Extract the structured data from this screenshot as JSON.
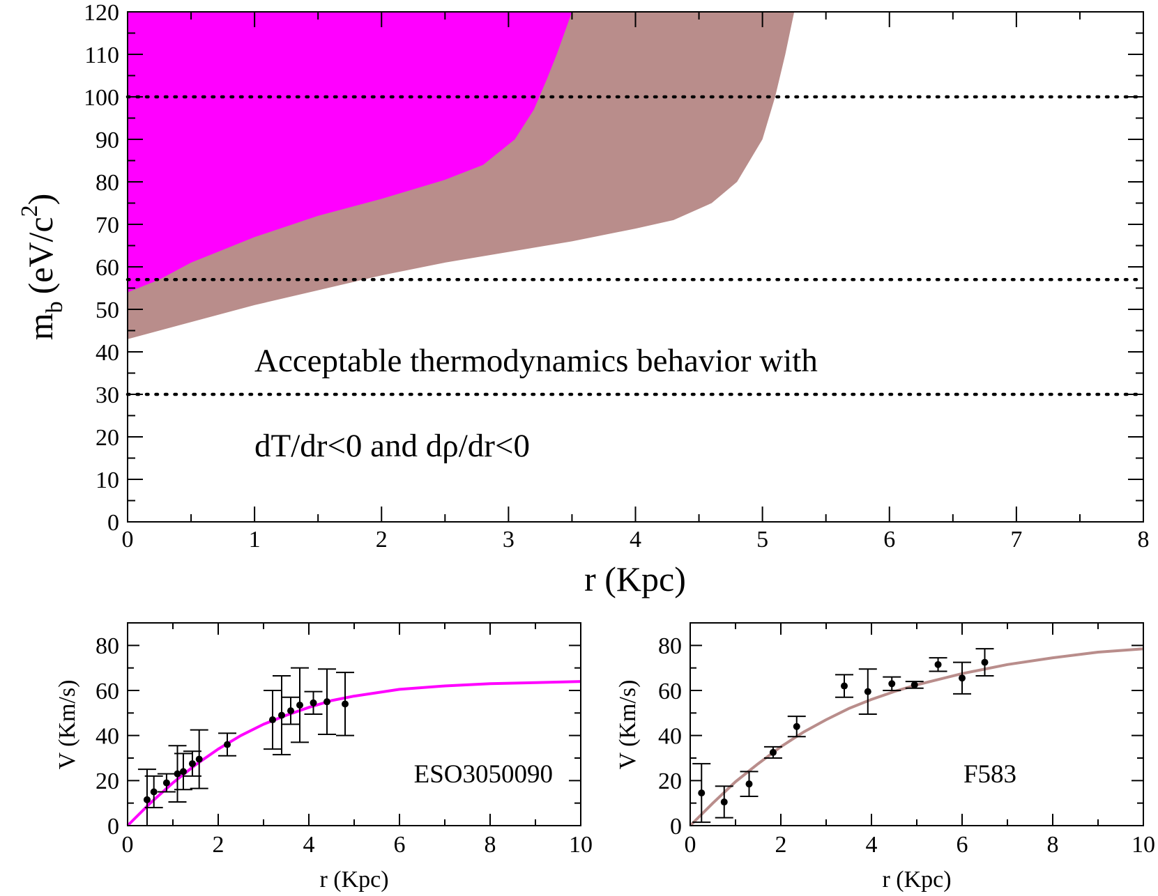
{
  "chart_data": [
    {
      "type": "area",
      "xlabel": "r (Kpc)",
      "ylabel_main": "m",
      "ylabel_sub": "b",
      "ylabel_unit": "(eV/c",
      "ylabel_sup": "2",
      "ylabel_close": ")",
      "xlim": [
        0,
        8
      ],
      "ylim": [
        0,
        120
      ],
      "xticks": [
        "0",
        "1",
        "2",
        "3",
        "4",
        "5",
        "6",
        "7",
        "8"
      ],
      "yticks": [
        "0",
        "10",
        "20",
        "30",
        "40",
        "50",
        "60",
        "70",
        "80",
        "90",
        "100",
        "110",
        "120"
      ],
      "annotation_line1": "Acceptable thermodynamics behavior with",
      "annotation_line2": "dT/dr<0 and dρ/dr<0",
      "reference_lines_y": [
        100,
        57,
        30
      ],
      "regions": [
        {
          "color": "#b98d8b",
          "lower_boundary": [
            [
              0,
              43
            ],
            [
              0.5,
              47
            ],
            [
              1,
              51
            ],
            [
              1.5,
              54.5
            ],
            [
              2,
              58
            ],
            [
              2.5,
              61
            ],
            [
              3,
              63.5
            ],
            [
              3.5,
              66
            ],
            [
              4,
              69
            ],
            [
              4.3,
              71
            ],
            [
              4.6,
              75
            ],
            [
              4.8,
              80
            ],
            [
              5.0,
              90
            ],
            [
              5.1,
              100
            ],
            [
              5.18,
              110
            ],
            [
              5.25,
              120
            ]
          ]
        },
        {
          "color": "#ff00ff",
          "lower_boundary": [
            [
              0,
              54
            ],
            [
              0.25,
              57
            ],
            [
              0.5,
              61
            ],
            [
              0.75,
              64
            ],
            [
              1,
              67
            ],
            [
              1.5,
              72
            ],
            [
              2,
              76
            ],
            [
              2.5,
              80.5
            ],
            [
              2.8,
              84
            ],
            [
              3.05,
              90
            ],
            [
              3.2,
              97
            ],
            [
              3.3,
              104
            ],
            [
              3.38,
              110
            ],
            [
              3.5,
              120
            ]
          ]
        }
      ]
    },
    {
      "type": "scatter",
      "label": "ESO3050090",
      "xlabel": "r (Kpc)",
      "ylabel": "V (Km/s)",
      "xlim": [
        0,
        10
      ],
      "ylim": [
        0,
        90
      ],
      "xticks": [
        "0",
        "2",
        "4",
        "6",
        "8",
        "10"
      ],
      "yticks": [
        "0",
        "20",
        "40",
        "60",
        "80"
      ],
      "curve_color": "#ff00ff",
      "curve": [
        [
          0,
          0
        ],
        [
          0.5,
          10
        ],
        [
          1,
          19
        ],
        [
          1.5,
          27
        ],
        [
          2,
          34
        ],
        [
          2.5,
          40
        ],
        [
          3,
          45
        ],
        [
          3.5,
          49
        ],
        [
          4,
          52.5
        ],
        [
          4.5,
          55.5
        ],
        [
          5,
          57.5
        ],
        [
          6,
          60.5
        ],
        [
          7,
          62
        ],
        [
          8,
          63
        ],
        [
          9,
          63.5
        ],
        [
          10,
          64
        ]
      ],
      "points": [
        {
          "x": 0.43,
          "y": 11.5,
          "err": 13.5
        },
        {
          "x": 0.58,
          "y": 15,
          "err": 7
        },
        {
          "x": 0.86,
          "y": 19,
          "err": 4
        },
        {
          "x": 1.1,
          "y": 23,
          "err": 12.5
        },
        {
          "x": 1.23,
          "y": 24,
          "err": 8
        },
        {
          "x": 1.43,
          "y": 27.5,
          "err": 5.5
        },
        {
          "x": 1.58,
          "y": 29.5,
          "err": 13
        },
        {
          "x": 2.2,
          "y": 36,
          "err": 5
        },
        {
          "x": 3.2,
          "y": 47,
          "err": 13
        },
        {
          "x": 3.4,
          "y": 49,
          "err": 17.5
        },
        {
          "x": 3.6,
          "y": 51,
          "err": 6
        },
        {
          "x": 3.8,
          "y": 53.5,
          "err": 16.5
        },
        {
          "x": 4.1,
          "y": 54.5,
          "err": 5
        },
        {
          "x": 4.4,
          "y": 55,
          "err": 14.5
        },
        {
          "x": 4.8,
          "y": 54,
          "err": 14
        }
      ]
    },
    {
      "type": "scatter",
      "label": "F583",
      "xlabel": "r (Kpc)",
      "ylabel": "V (Km/s)",
      "xlim": [
        0,
        10
      ],
      "ylim": [
        0,
        90
      ],
      "xticks": [
        "0",
        "2",
        "4",
        "6",
        "8",
        "10"
      ],
      "yticks": [
        "0",
        "20",
        "40",
        "60",
        "80"
      ],
      "curve_color": "#b98d8b",
      "curve": [
        [
          0,
          0
        ],
        [
          0.5,
          10
        ],
        [
          1,
          19.5
        ],
        [
          1.5,
          27.5
        ],
        [
          2,
          35
        ],
        [
          2.5,
          41.5
        ],
        [
          3,
          47
        ],
        [
          3.5,
          52
        ],
        [
          4,
          56
        ],
        [
          4.5,
          59.5
        ],
        [
          5,
          62.5
        ],
        [
          6,
          67.5
        ],
        [
          7,
          71.5
        ],
        [
          8,
          74.5
        ],
        [
          9,
          77
        ],
        [
          10,
          78.5
        ]
      ],
      "points": [
        {
          "x": 0.25,
          "y": 14.5,
          "err": 13
        },
        {
          "x": 0.75,
          "y": 10.5,
          "err": 7
        },
        {
          "x": 1.3,
          "y": 18.5,
          "err": 5.5
        },
        {
          "x": 1.83,
          "y": 32.5,
          "err": 2.5
        },
        {
          "x": 2.35,
          "y": 44,
          "err": 4.5
        },
        {
          "x": 3.4,
          "y": 62,
          "err": 5
        },
        {
          "x": 3.92,
          "y": 59.5,
          "err": 10
        },
        {
          "x": 4.45,
          "y": 63,
          "err": 3
        },
        {
          "x": 4.95,
          "y": 62.5,
          "err": 1.5
        },
        {
          "x": 5.47,
          "y": 71.5,
          "err": 3
        },
        {
          "x": 6.0,
          "y": 65.5,
          "err": 7
        },
        {
          "x": 6.5,
          "y": 72.5,
          "err": 6
        }
      ]
    }
  ]
}
